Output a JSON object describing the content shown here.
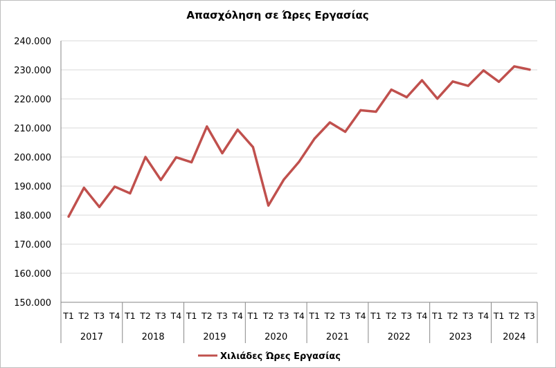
{
  "chart_data": {
    "type": "line",
    "title": "Απασχόληση σε Ώρες Εργασίας",
    "xlabel": "",
    "ylabel": "",
    "ylim": [
      150000,
      240000
    ],
    "y_ticks": [
      "150.000",
      "160.000",
      "170.000",
      "180.000",
      "190.000",
      "200.000",
      "210.000",
      "220.000",
      "230.000",
      "240.000"
    ],
    "y_tick_values": [
      150000,
      160000,
      170000,
      180000,
      190000,
      200000,
      210000,
      220000,
      230000,
      240000
    ],
    "grid": true,
    "legend_position": "bottom",
    "years": [
      {
        "label": "2017",
        "quarters": [
          "T1",
          "T2",
          "T3",
          "T4"
        ]
      },
      {
        "label": "2018",
        "quarters": [
          "T1",
          "T2",
          "T3",
          "T4"
        ]
      },
      {
        "label": "2019",
        "quarters": [
          "T1",
          "T2",
          "T3",
          "T4"
        ]
      },
      {
        "label": "2020",
        "quarters": [
          "T1",
          "T2",
          "T3",
          "T4"
        ]
      },
      {
        "label": "2021",
        "quarters": [
          "T1",
          "T2",
          "T3",
          "T4"
        ]
      },
      {
        "label": "2022",
        "quarters": [
          "T1",
          "T2",
          "T3",
          "T4"
        ]
      },
      {
        "label": "2023",
        "quarters": [
          "T1",
          "T2",
          "T3",
          "T4"
        ]
      },
      {
        "label": "2024",
        "quarters": [
          "T1",
          "T2",
          "T3"
        ]
      }
    ],
    "series": [
      {
        "name": "Χιλιάδες Ώρες Εργασίας",
        "color": "#c0504d",
        "values": [
          179500,
          189400,
          182800,
          189800,
          187500,
          200000,
          192100,
          199900,
          198200,
          210500,
          201300,
          209400,
          203400,
          183300,
          192200,
          198400,
          206300,
          211900,
          208700,
          216100,
          215600,
          223200,
          220600,
          226400,
          220100,
          226000,
          224500,
          229800,
          225900,
          231200,
          230100
        ]
      }
    ]
  }
}
